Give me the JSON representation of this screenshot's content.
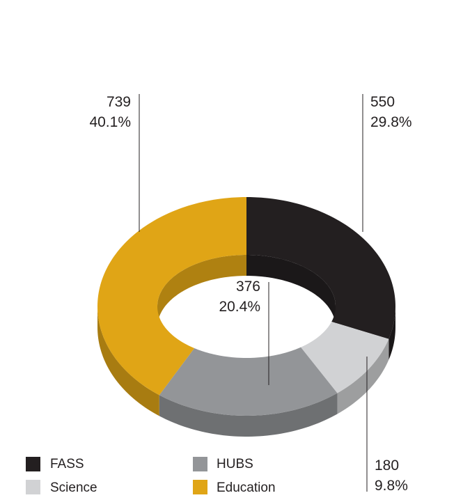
{
  "chart_data": {
    "type": "pie",
    "donut": true,
    "categories": [
      "FASS",
      "Science",
      "HUBS",
      "Education"
    ],
    "values": [
      550,
      180,
      376,
      739
    ],
    "percentages": [
      "29.8%",
      "9.8%",
      "20.4%",
      "40.1%"
    ],
    "value_labels": [
      "550",
      "180",
      "376",
      "739"
    ],
    "colors": {
      "FASS": "#231f20",
      "Science": "#d1d2d4",
      "HUBS": "#939598",
      "Education": "#e0a516"
    },
    "legend": {
      "placement": "bottom-left",
      "entries": [
        "FASS",
        "HUBS",
        "Science",
        "Education"
      ]
    }
  }
}
